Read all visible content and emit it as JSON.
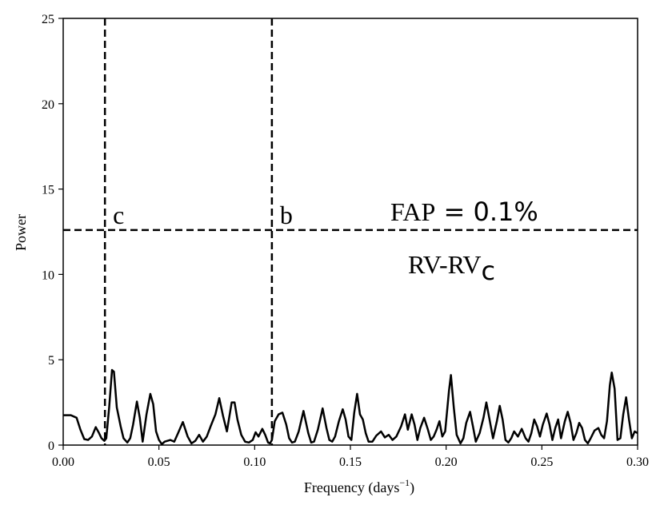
{
  "chart_data": {
    "type": "line",
    "title": "",
    "xlabel": "Frequency (days",
    "xlabel_sup": "−1",
    "xlabel_close": ")",
    "ylabel": "Power",
    "xlim": [
      0.0,
      0.3
    ],
    "ylim": [
      0,
      25
    ],
    "x_ticks": [
      "0.00",
      "0.05",
      "0.10",
      "0.15",
      "0.20",
      "0.25",
      "0.30"
    ],
    "y_ticks": [
      "0",
      "5",
      "10",
      "15",
      "20",
      "25"
    ],
    "grid": false,
    "line_color": "#000000",
    "fap_threshold": 12.6,
    "fap_label_text": "FAP",
    "fap_label_eq": " = 0.1%",
    "subtitle_main": "RV-RV",
    "subtitle_sub": "c",
    "signals": [
      {
        "label": "c",
        "frequency": 0.0218
      },
      {
        "label": "b",
        "frequency": 0.109
      }
    ],
    "series": [
      {
        "points": [
          [
            0.0,
            1.75
          ],
          [
            0.004,
            1.75
          ],
          [
            0.007,
            1.6
          ],
          [
            0.009,
            0.9
          ],
          [
            0.011,
            0.35
          ],
          [
            0.013,
            0.3
          ],
          [
            0.015,
            0.5
          ],
          [
            0.017,
            1.05
          ],
          [
            0.0185,
            0.75
          ],
          [
            0.02,
            0.4
          ],
          [
            0.0215,
            0.25
          ],
          [
            0.0225,
            0.4
          ],
          [
            0.024,
            2.2
          ],
          [
            0.0255,
            4.4
          ],
          [
            0.0265,
            4.3
          ],
          [
            0.028,
            2.2
          ],
          [
            0.03,
            1.1
          ],
          [
            0.0315,
            0.4
          ],
          [
            0.0335,
            0.15
          ],
          [
            0.035,
            0.4
          ],
          [
            0.0365,
            1.2
          ],
          [
            0.0385,
            2.55
          ],
          [
            0.04,
            1.6
          ],
          [
            0.0415,
            0.2
          ],
          [
            0.0435,
            1.8
          ],
          [
            0.0455,
            3.0
          ],
          [
            0.047,
            2.4
          ],
          [
            0.0485,
            0.8
          ],
          [
            0.05,
            0.3
          ],
          [
            0.0515,
            0.05
          ],
          [
            0.053,
            0.2
          ],
          [
            0.056,
            0.3
          ],
          [
            0.058,
            0.2
          ],
          [
            0.06,
            0.7
          ],
          [
            0.0625,
            1.35
          ],
          [
            0.065,
            0.5
          ],
          [
            0.067,
            0.1
          ],
          [
            0.069,
            0.25
          ],
          [
            0.071,
            0.6
          ],
          [
            0.073,
            0.2
          ],
          [
            0.075,
            0.5
          ],
          [
            0.077,
            1.1
          ],
          [
            0.0795,
            1.8
          ],
          [
            0.0815,
            2.75
          ],
          [
            0.0835,
            1.7
          ],
          [
            0.0855,
            0.8
          ],
          [
            0.088,
            2.5
          ],
          [
            0.0895,
            2.5
          ],
          [
            0.091,
            1.5
          ],
          [
            0.093,
            0.6
          ],
          [
            0.095,
            0.2
          ],
          [
            0.097,
            0.15
          ],
          [
            0.099,
            0.3
          ],
          [
            0.1005,
            0.75
          ],
          [
            0.102,
            0.5
          ],
          [
            0.104,
            0.95
          ],
          [
            0.1055,
            0.6
          ],
          [
            0.107,
            0.15
          ],
          [
            0.108,
            0.1
          ],
          [
            0.109,
            0.3
          ],
          [
            0.1105,
            1.4
          ],
          [
            0.1125,
            1.8
          ],
          [
            0.1145,
            1.9
          ],
          [
            0.1165,
            1.2
          ],
          [
            0.118,
            0.4
          ],
          [
            0.1195,
            0.15
          ],
          [
            0.121,
            0.2
          ],
          [
            0.123,
            0.8
          ],
          [
            0.1255,
            2.0
          ],
          [
            0.128,
            0.7
          ],
          [
            0.1295,
            0.15
          ],
          [
            0.131,
            0.2
          ],
          [
            0.133,
            0.9
          ],
          [
            0.1355,
            2.15
          ],
          [
            0.1375,
            1.0
          ],
          [
            0.139,
            0.3
          ],
          [
            0.1405,
            0.2
          ],
          [
            0.142,
            0.5
          ],
          [
            0.144,
            1.4
          ],
          [
            0.146,
            2.1
          ],
          [
            0.1475,
            1.5
          ],
          [
            0.149,
            0.5
          ],
          [
            0.1505,
            0.3
          ],
          [
            0.152,
            1.9
          ],
          [
            0.1535,
            3.0
          ],
          [
            0.155,
            1.8
          ],
          [
            0.1565,
            1.5
          ],
          [
            0.158,
            0.7
          ],
          [
            0.1595,
            0.2
          ],
          [
            0.1615,
            0.2
          ],
          [
            0.1635,
            0.55
          ],
          [
            0.166,
            0.8
          ],
          [
            0.168,
            0.45
          ],
          [
            0.17,
            0.6
          ],
          [
            0.172,
            0.3
          ],
          [
            0.174,
            0.5
          ],
          [
            0.1765,
            1.1
          ],
          [
            0.1785,
            1.8
          ],
          [
            0.18,
            0.9
          ],
          [
            0.182,
            1.8
          ],
          [
            0.1835,
            1.2
          ],
          [
            0.185,
            0.3
          ],
          [
            0.1865,
            1.0
          ],
          [
            0.1885,
            1.6
          ],
          [
            0.1905,
            0.9
          ],
          [
            0.192,
            0.3
          ],
          [
            0.1935,
            0.5
          ],
          [
            0.195,
            0.9
          ],
          [
            0.1965,
            1.4
          ],
          [
            0.198,
            0.5
          ],
          [
            0.1995,
            0.8
          ],
          [
            0.2015,
            3.2
          ],
          [
            0.2025,
            4.1
          ],
          [
            0.204,
            2.2
          ],
          [
            0.2055,
            0.6
          ],
          [
            0.2075,
            0.1
          ],
          [
            0.209,
            0.4
          ],
          [
            0.2105,
            1.3
          ],
          [
            0.2125,
            1.95
          ],
          [
            0.214,
            1.1
          ],
          [
            0.2155,
            0.2
          ],
          [
            0.2175,
            0.7
          ],
          [
            0.2195,
            1.6
          ],
          [
            0.221,
            2.5
          ],
          [
            0.2225,
            1.6
          ],
          [
            0.2245,
            0.4
          ],
          [
            0.2265,
            1.4
          ],
          [
            0.228,
            2.3
          ],
          [
            0.2295,
            1.5
          ],
          [
            0.231,
            0.3
          ],
          [
            0.2325,
            0.15
          ],
          [
            0.234,
            0.4
          ],
          [
            0.2355,
            0.8
          ],
          [
            0.2375,
            0.5
          ],
          [
            0.2395,
            0.95
          ],
          [
            0.2415,
            0.4
          ],
          [
            0.243,
            0.2
          ],
          [
            0.2445,
            0.7
          ],
          [
            0.246,
            1.5
          ],
          [
            0.2475,
            1.1
          ],
          [
            0.249,
            0.5
          ],
          [
            0.2505,
            1.2
          ],
          [
            0.2525,
            1.85
          ],
          [
            0.254,
            1.2
          ],
          [
            0.2555,
            0.3
          ],
          [
            0.257,
            1.0
          ],
          [
            0.2585,
            1.5
          ],
          [
            0.26,
            0.4
          ],
          [
            0.262,
            1.4
          ],
          [
            0.2635,
            1.95
          ],
          [
            0.265,
            1.3
          ],
          [
            0.2665,
            0.3
          ],
          [
            0.268,
            0.7
          ],
          [
            0.2695,
            1.3
          ],
          [
            0.271,
            1.0
          ],
          [
            0.2725,
            0.3
          ],
          [
            0.274,
            0.1
          ],
          [
            0.2755,
            0.4
          ],
          [
            0.2775,
            0.85
          ],
          [
            0.2795,
            1.0
          ],
          [
            0.281,
            0.6
          ],
          [
            0.2825,
            0.4
          ],
          [
            0.284,
            1.4
          ],
          [
            0.2855,
            3.5
          ],
          [
            0.2865,
            4.25
          ],
          [
            0.288,
            3.3
          ],
          [
            0.2895,
            0.3
          ],
          [
            0.291,
            0.4
          ],
          [
            0.2925,
            1.8
          ],
          [
            0.294,
            2.8
          ],
          [
            0.2955,
            1.5
          ],
          [
            0.297,
            0.4
          ],
          [
            0.2985,
            0.8
          ],
          [
            0.3,
            0.7
          ]
        ]
      }
    ]
  }
}
